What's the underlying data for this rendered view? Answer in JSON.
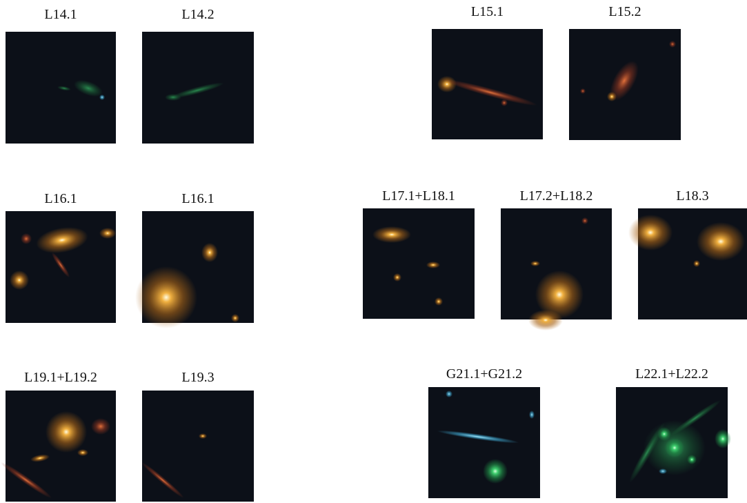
{
  "panels": [
    {
      "label": "L14.1"
    },
    {
      "label": "L14.2"
    },
    {
      "label": "L15.1"
    },
    {
      "label": "L15.2"
    },
    {
      "label": "L16.1"
    },
    {
      "label": "L16.1"
    },
    {
      "label": "L17.1+L18.1"
    },
    {
      "label": "L17.2+L18.2"
    },
    {
      "label": "L18.3"
    },
    {
      "label": "L19.1+L19.2"
    },
    {
      "label": "L19.3"
    },
    {
      "label": "G21.1+G21.2"
    },
    {
      "label": "L22.1+L22.2"
    }
  ]
}
